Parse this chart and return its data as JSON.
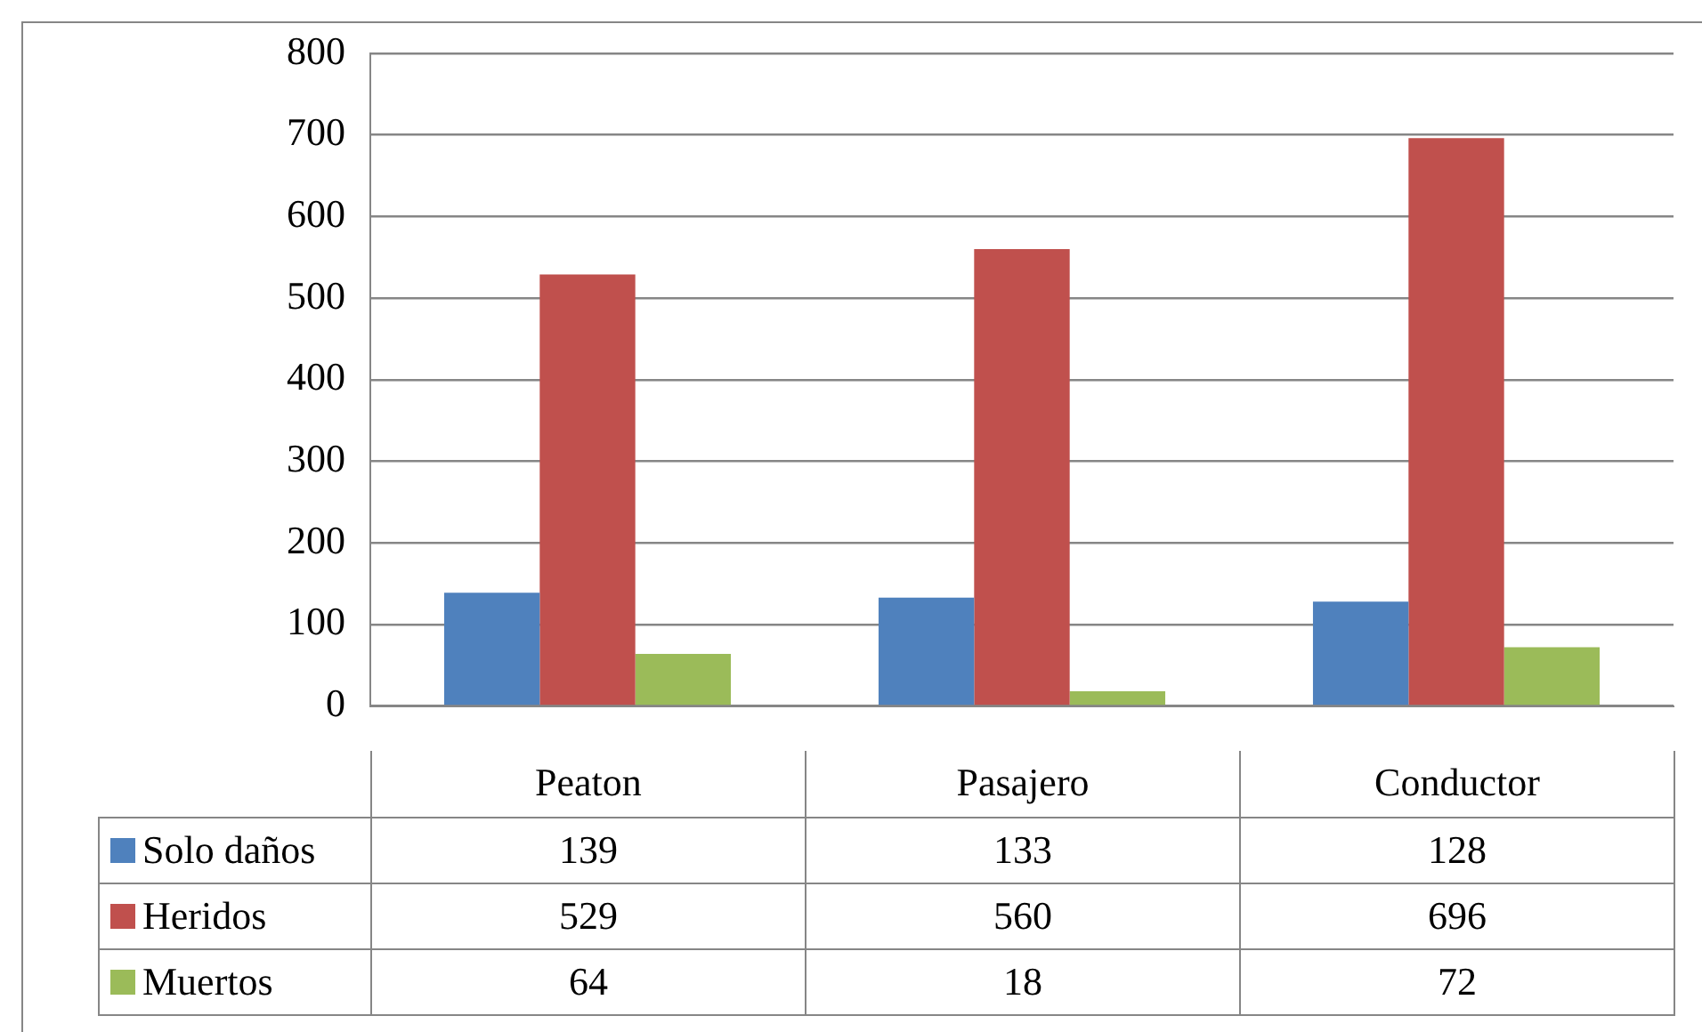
{
  "chart_data": {
    "type": "bar",
    "categories": [
      "Peaton",
      "Pasajero",
      "Conductor"
    ],
    "series": [
      {
        "name": "Solo daños",
        "color": "#4f81bd",
        "values": [
          139,
          133,
          128
        ]
      },
      {
        "name": "Heridos",
        "color": "#c0504d",
        "values": [
          529,
          560,
          696
        ]
      },
      {
        "name": "Muertos",
        "color": "#9bbb59",
        "values": [
          64,
          18,
          72
        ]
      }
    ],
    "ylim": [
      0,
      800
    ],
    "yticks": [
      0,
      100,
      200,
      300,
      400,
      500,
      600,
      700,
      800
    ],
    "grid": "y",
    "legend": "bottom",
    "data_labels": true
  }
}
